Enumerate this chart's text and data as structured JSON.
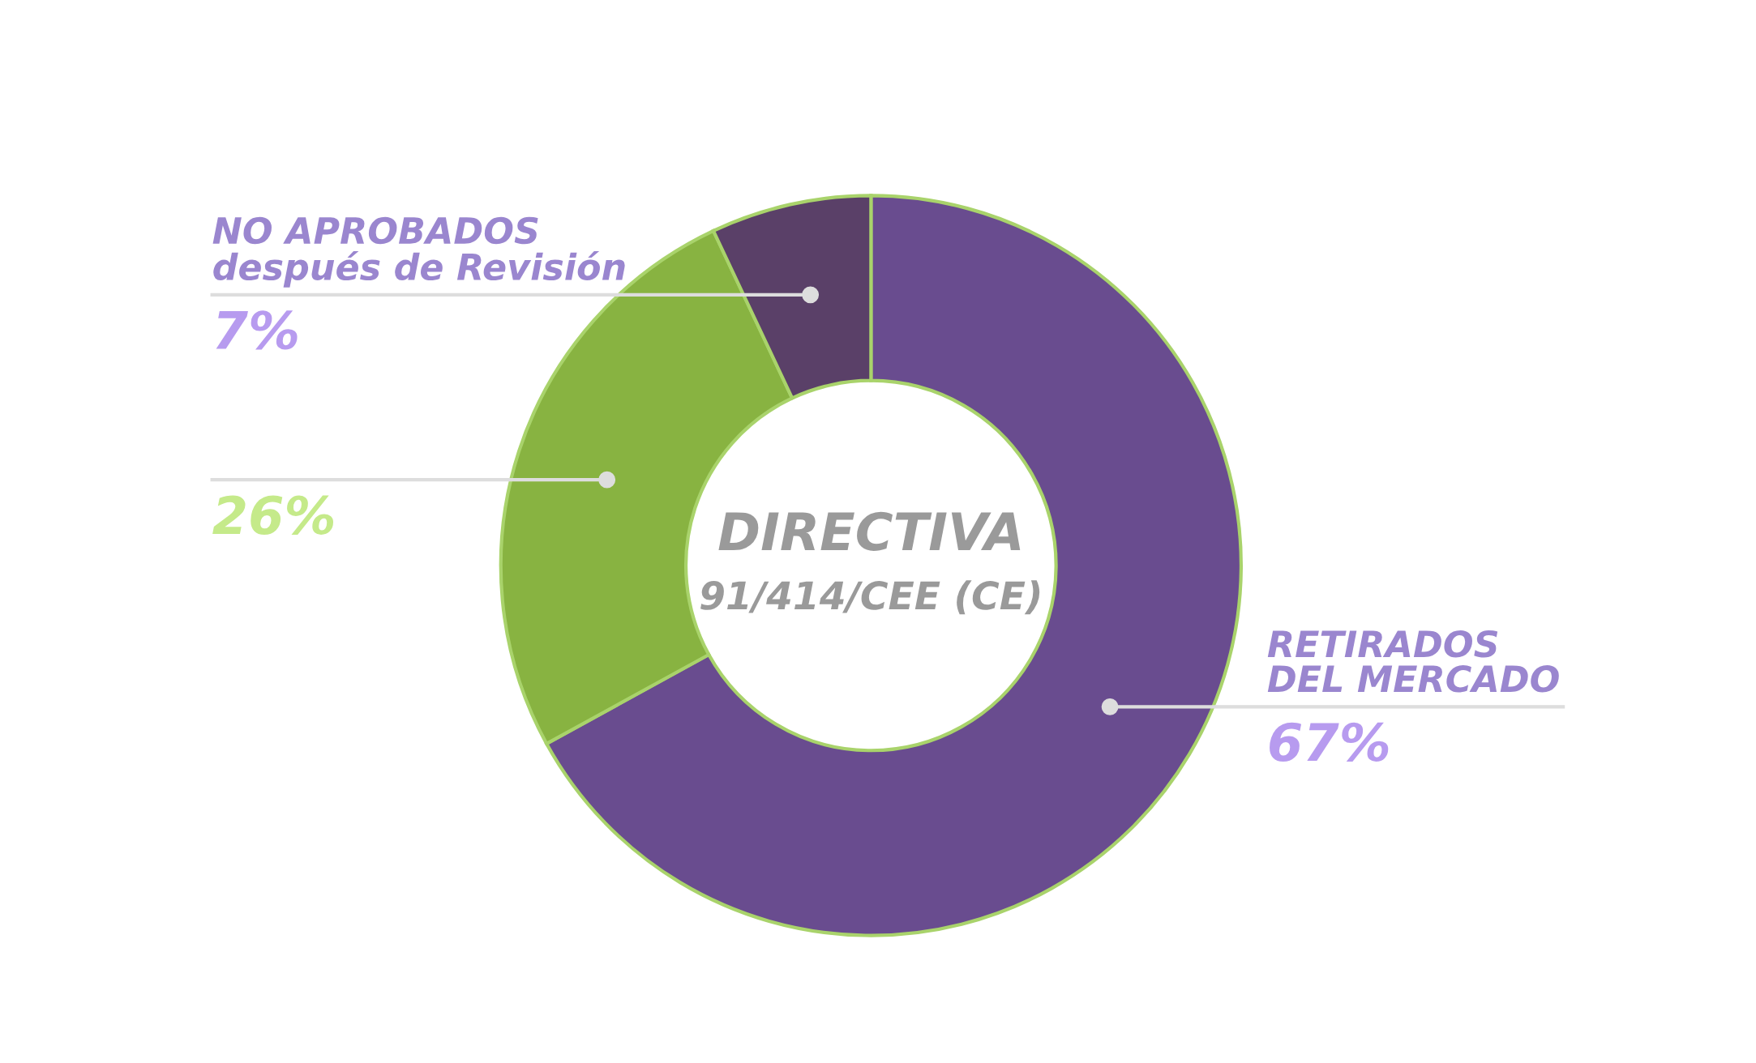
{
  "chart_data": {
    "type": "donut",
    "categories": [
      "RETIRADOS\nDEL MERCADO",
      null,
      "NO APROBADOS\ndespués de Revisión"
    ],
    "values": [
      67,
      26,
      7
    ],
    "colors": [
      "#694c8f",
      "#88b341",
      "#5a4068"
    ],
    "value_labels": [
      "67%",
      "26%",
      "7%"
    ],
    "annotations": [
      "DIRECTIVA",
      "91/414/CEE (CE)"
    ],
    "legend": false
  }
}
